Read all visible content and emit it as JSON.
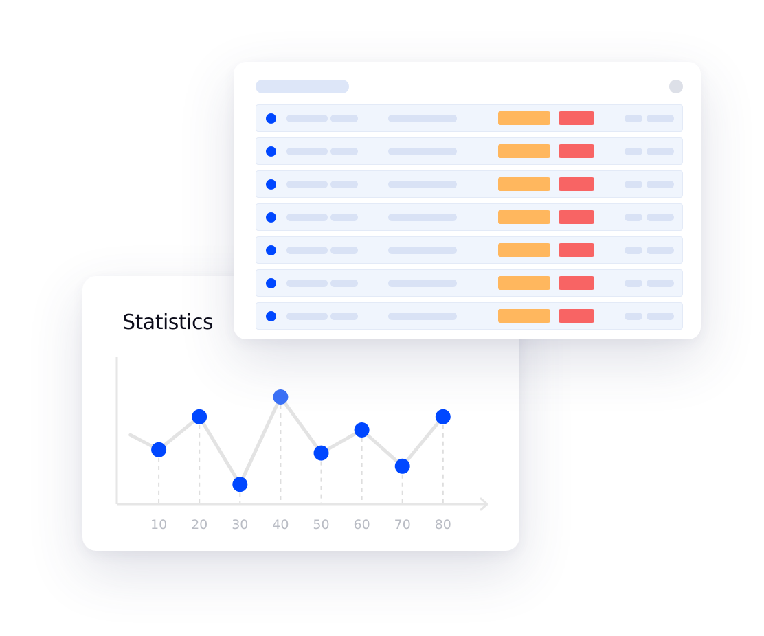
{
  "colors": {
    "accent": "#0047ff",
    "series_line": "#e3e3e3",
    "guide": "#dedede",
    "axis": "#e6e6e6",
    "tag_orange": "#ffb75e",
    "tag_red": "#f86464"
  },
  "stats_card": {
    "title": "Statistics"
  },
  "chart_data": {
    "type": "line",
    "title": "Statistics",
    "xlabel": "",
    "ylabel": "",
    "x_ticks": [
      10,
      20,
      30,
      40,
      50,
      60,
      70,
      80
    ],
    "lead_in": {
      "x": 3,
      "y": 42
    },
    "points": [
      {
        "x": 10,
        "y": 33
      },
      {
        "x": 20,
        "y": 53
      },
      {
        "x": 30,
        "y": 12
      },
      {
        "x": 40,
        "y": 65
      },
      {
        "x": 50,
        "y": 31
      },
      {
        "x": 60,
        "y": 45
      },
      {
        "x": 70,
        "y": 23
      },
      {
        "x": 80,
        "y": 53
      }
    ],
    "xlim": [
      0,
      89
    ],
    "ylim": [
      0,
      80
    ],
    "grid": false,
    "legend": "none"
  },
  "table_card": {
    "row_count": 7,
    "row_icon": "status-dot-icon",
    "tag_colors": [
      "#ffb75e",
      "#f86464"
    ]
  }
}
